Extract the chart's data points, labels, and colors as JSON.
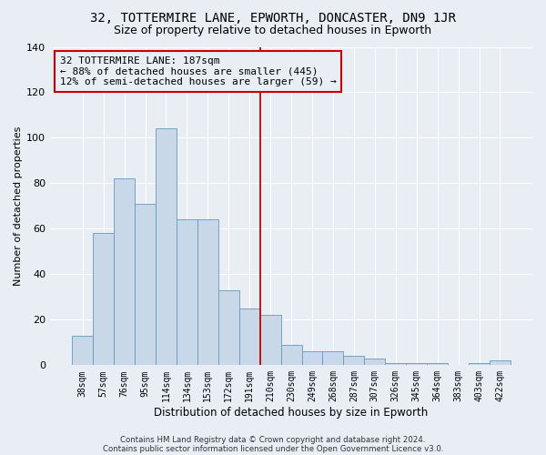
{
  "title1": "32, TOTTERMIRE LANE, EPWORTH, DONCASTER, DN9 1JR",
  "title2": "Size of property relative to detached houses in Epworth",
  "xlabel": "Distribution of detached houses by size in Epworth",
  "ylabel": "Number of detached properties",
  "footer1": "Contains HM Land Registry data © Crown copyright and database right 2024.",
  "footer2": "Contains public sector information licensed under the Open Government Licence v3.0.",
  "categories": [
    "38sqm",
    "57sqm",
    "76sqm",
    "95sqm",
    "114sqm",
    "134sqm",
    "153sqm",
    "172sqm",
    "191sqm",
    "210sqm",
    "230sqm",
    "249sqm",
    "268sqm",
    "287sqm",
    "307sqm",
    "326sqm",
    "345sqm",
    "364sqm",
    "383sqm",
    "403sqm",
    "422sqm"
  ],
  "values": [
    13,
    58,
    82,
    71,
    104,
    64,
    64,
    33,
    25,
    22,
    9,
    6,
    6,
    4,
    3,
    1,
    1,
    1,
    0,
    1,
    2
  ],
  "bar_color": "#c8d8e8",
  "bar_edge_color": "#6699bb",
  "vline_x": 8.5,
  "vline_color": "#cc0000",
  "annotation_lines": [
    "32 TOTTERMIRE LANE: 187sqm",
    "← 88% of detached houses are smaller (445)",
    "12% of semi-detached houses are larger (59) →"
  ],
  "annotation_box_color": "#cc0000",
  "ylim": [
    0,
    140
  ],
  "yticks": [
    0,
    20,
    40,
    60,
    80,
    100,
    120,
    140
  ],
  "background_color": "#e8eef4",
  "grid_color": "#ffffff",
  "title1_fontsize": 10,
  "title2_fontsize": 9,
  "ann_fontsize": 8
}
